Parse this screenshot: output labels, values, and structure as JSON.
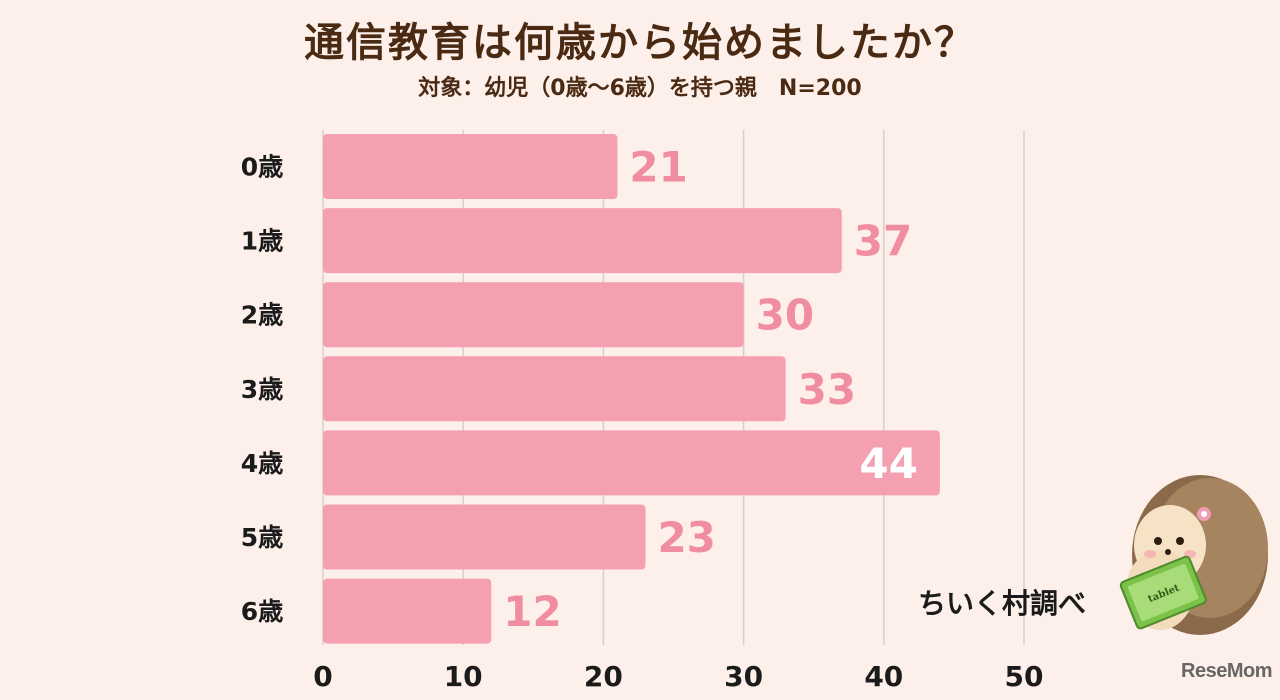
{
  "title": "通信教育は何歳から始めましたか？",
  "subtitle": "対象：幼児（0歳～6歳）を持つ親　N=200",
  "credit": "ちいく村調べ",
  "watermark": "ReseMom",
  "mascot": {
    "name": "hedgehog-with-tablet-illustration",
    "tablet_label": "tablet"
  },
  "colors": {
    "background": "#fdf0ea",
    "bar": "#f5a0b0",
    "value_label": "#f08da0",
    "value_label_inside": "#ffffff",
    "category_label": "#1b1b1b",
    "title": "#4a2a12"
  },
  "chart_data": {
    "type": "bar",
    "orientation": "horizontal",
    "categories": [
      "0歳",
      "1歳",
      "2歳",
      "3歳",
      "4歳",
      "5歳",
      "6歳"
    ],
    "values": [
      21,
      37,
      30,
      33,
      44,
      23,
      12
    ],
    "xlim": [
      0,
      50
    ],
    "xticks": [
      0,
      10,
      20,
      30,
      40,
      50
    ],
    "grid": true,
    "value_labels": true,
    "xlabel": "",
    "ylabel": ""
  }
}
